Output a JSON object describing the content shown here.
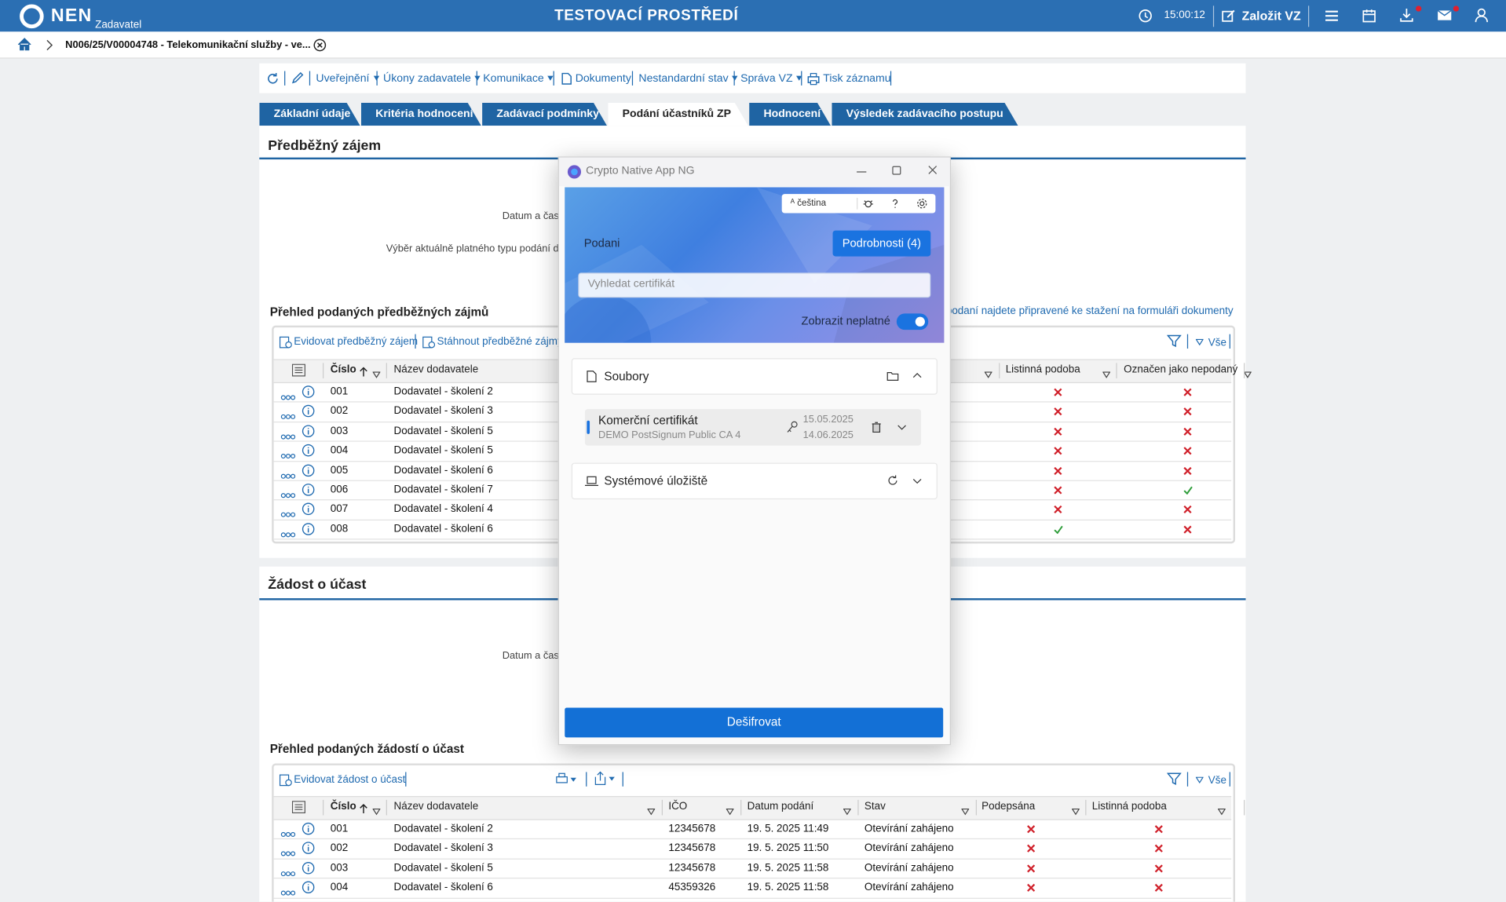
{
  "header": {
    "logo": "NEN",
    "role": "Zadavatel",
    "environment": "TESTOVACÍ PROSTŘEDÍ",
    "time": "15:00:12",
    "create_button": "Založit VZ"
  },
  "breadcrumb": "N006/25/V00004748 - Telekomunikační služby - ve...",
  "toolbar": [
    "Uveřejnění",
    "Úkony zadavatele",
    "Komunikace",
    "Dokumenty",
    "Nestandardní stav",
    "Správa VZ",
    "Tisk záznamu"
  ],
  "tabs": [
    "Základní údaje",
    "Kritéria hodnocení",
    "Zadávací podmínky",
    "Podání účastníků ZP",
    "Hodnocení",
    "Výsledek zadávacího postupu"
  ],
  "preliminary": {
    "title": "Předběžný zájem",
    "field_date": "Datum a čas",
    "field_type": "Výběr aktuálně platného typu podání d",
    "list_title": "Přehled podaných předběžných zájmů",
    "note": "y podaní najdete připravené ke stažení na formuláři dokumenty",
    "actions": [
      "Evidovat předběžný zájem",
      "Stáhnout předběžné zájmy"
    ],
    "filter_all": "Vše",
    "columns": [
      "Číslo",
      "Název dodavatele",
      "Listinná podoba",
      "Označen jako nepodaný"
    ],
    "rows": [
      [
        "001",
        "Dodavatel - školení 2",
        false,
        false
      ],
      [
        "002",
        "Dodavatel - školení 3",
        false,
        false
      ],
      [
        "003",
        "Dodavatel - školení 5",
        false,
        false
      ],
      [
        "004",
        "Dodavatel - školení 5",
        false,
        false
      ],
      [
        "005",
        "Dodavatel - školení 6",
        false,
        false
      ],
      [
        "006",
        "Dodavatel - školení 7",
        false,
        true
      ],
      [
        "007",
        "Dodavatel - školení 4",
        false,
        false
      ],
      [
        "008",
        "Dodavatel - školení 6",
        true,
        false
      ]
    ]
  },
  "participation": {
    "title": "Žádost o účast",
    "field_date": "Datum a čas",
    "list_title": "Přehled podaných žádostí o účast",
    "actions": [
      "Evidovat žádost o účast"
    ],
    "filter_all": "Vše",
    "columns": [
      "Číslo",
      "Název dodavatele",
      "IČO",
      "Datum podání",
      "Stav",
      "Podepsána",
      "Listinná podoba"
    ],
    "rows": [
      [
        "001",
        "Dodavatel - školení 2",
        "12345678",
        "19. 5. 2025 11:49",
        "Otevírání zahájeno",
        false,
        false
      ],
      [
        "002",
        "Dodavatel - školení 3",
        "12345678",
        "19. 5. 2025 11:50",
        "Otevírání zahájeno",
        false,
        false
      ],
      [
        "003",
        "Dodavatel - školení 5",
        "12345678",
        "19. 5. 2025 11:58",
        "Otevírání zahájeno",
        false,
        false
      ],
      [
        "004",
        "Dodavatel - školení 6",
        "45359326",
        "19. 5. 2025 11:58",
        "Otevírání zahájeno",
        false,
        false
      ]
    ]
  },
  "dialog": {
    "title": "Crypto Native App NG",
    "language": "čeština",
    "heading": "Podani",
    "details_button": "Podrobnosti (4)",
    "search_placeholder": "Vyhledat certifikát",
    "toggle_label": "Zobrazit neplatné",
    "files": "Soubory",
    "certificate": {
      "name": "Komerční certifikát",
      "issuer": "DEMO PostSignum Public CA 4",
      "valid_from": "15.05.2025",
      "valid_to": "14.06.2025"
    },
    "system_store": "Systémové úložiště",
    "decrypt_button": "Dešifrovat"
  }
}
